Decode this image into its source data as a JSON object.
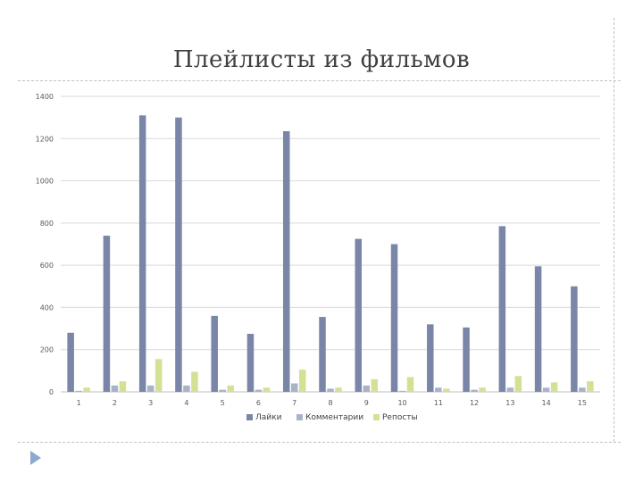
{
  "slide": {
    "title": "Плейлисты из фильмов"
  },
  "chart_data": {
    "type": "bar",
    "title": "",
    "xlabel": "",
    "ylabel": "",
    "categories": [
      "1",
      "2",
      "3",
      "4",
      "5",
      "6",
      "7",
      "8",
      "9",
      "10",
      "11",
      "12",
      "13",
      "14",
      "15"
    ],
    "ylim": [
      0,
      1400
    ],
    "yticks": [
      0,
      200,
      400,
      600,
      800,
      1000,
      1200,
      1400
    ],
    "grid": true,
    "legend_position": "bottom",
    "series": [
      {
        "name": "Лайки",
        "color": "#7986a8",
        "values": [
          280,
          740,
          1310,
          1300,
          360,
          275,
          1235,
          355,
          725,
          700,
          320,
          305,
          785,
          595,
          500
        ]
      },
      {
        "name": "Комментарии",
        "color": "#a9b3c8",
        "values": [
          5,
          30,
          30,
          30,
          10,
          10,
          40,
          15,
          30,
          5,
          20,
          10,
          20,
          20,
          20
        ]
      },
      {
        "name": "Репосты",
        "color": "#d3e195",
        "values": [
          20,
          50,
          155,
          95,
          30,
          20,
          105,
          20,
          60,
          70,
          15,
          20,
          75,
          45,
          50
        ]
      }
    ]
  },
  "colors": {
    "gridline": "#d9d9d9",
    "axis": "#bfbfbf"
  }
}
